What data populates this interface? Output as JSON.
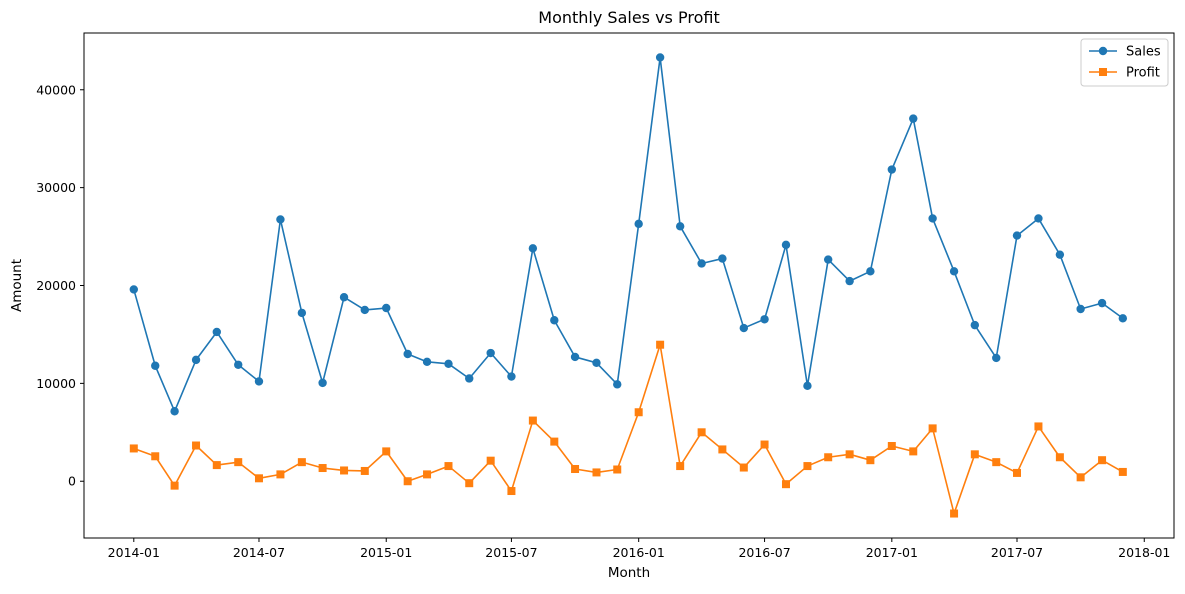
{
  "chart_data": {
    "type": "line",
    "title": "Monthly Sales vs Profit",
    "xlabel": "Month",
    "ylabel": "Amount",
    "x": [
      "2014-01-01",
      "2014-02-01",
      "2014-03-01",
      "2014-04-01",
      "2014-05-01",
      "2014-06-01",
      "2014-07-01",
      "2014-08-01",
      "2014-09-01",
      "2014-10-01",
      "2014-11-01",
      "2014-12-01",
      "2015-01-01",
      "2015-02-01",
      "2015-03-01",
      "2015-04-01",
      "2015-05-01",
      "2015-06-01",
      "2015-07-01",
      "2015-08-01",
      "2015-09-01",
      "2015-10-01",
      "2015-11-01",
      "2015-12-01",
      "2016-01-01",
      "2016-02-01",
      "2016-03-01",
      "2016-04-01",
      "2016-05-01",
      "2016-06-01",
      "2016-07-01",
      "2016-08-01",
      "2016-09-01",
      "2016-10-01",
      "2016-11-01",
      "2016-12-01",
      "2017-01-01",
      "2017-02-01",
      "2017-03-01",
      "2017-04-01",
      "2017-05-01",
      "2017-06-01",
      "2017-07-01",
      "2017-08-01",
      "2017-09-01",
      "2017-10-01",
      "2017-11-01",
      "2017-12-01"
    ],
    "series": [
      {
        "name": "Sales",
        "color": "#1f77b4",
        "marker": "circle",
        "values": [
          19600,
          11800,
          7150,
          12400,
          15250,
          11900,
          10200,
          26750,
          17200,
          10050,
          18800,
          17500,
          17700,
          13000,
          12200,
          12000,
          10500,
          13100,
          10700,
          23800,
          16450,
          12700,
          12100,
          9900,
          26300,
          43300,
          26050,
          22250,
          22750,
          15650,
          16550,
          24150,
          9750,
          22650,
          20450,
          21450,
          31850,
          37050,
          26850,
          21450,
          15950,
          12600,
          25100,
          26850,
          23150,
          17600,
          18200,
          16650
        ]
      },
      {
        "name": "Profit",
        "color": "#ff7f0e",
        "marker": "square",
        "values": [
          3350,
          2550,
          -450,
          3650,
          1650,
          1950,
          300,
          700,
          1950,
          1350,
          1100,
          1050,
          3050,
          0,
          700,
          1550,
          -200,
          2100,
          -1000,
          6200,
          4050,
          1250,
          900,
          1200,
          7050,
          13950,
          1550,
          5000,
          3250,
          1400,
          3750,
          -300,
          1550,
          2450,
          2750,
          2150,
          3600,
          3050,
          5400,
          -3300,
          2750,
          1950,
          850,
          5600,
          2450,
          400,
          2150,
          950
        ]
      }
    ],
    "x_ticks": [
      "2014-01",
      "2014-07",
      "2015-01",
      "2015-07",
      "2016-01",
      "2016-07",
      "2017-01",
      "2017-07",
      "2018-01"
    ],
    "y_ticks": [
      "0",
      "10000",
      "20000",
      "30000",
      "40000"
    ],
    "xlim": [
      "2013-10-21",
      "2018-02-13"
    ],
    "ylim": [
      -5800,
      45800
    ],
    "legend_position": "top-right",
    "grid": false
  }
}
